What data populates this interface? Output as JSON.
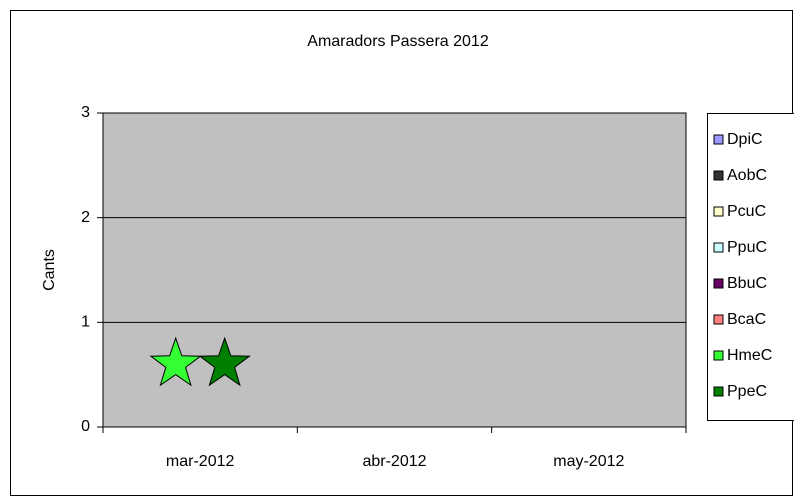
{
  "chart_data": {
    "type": "dot",
    "marker": "star",
    "title": "Amaradors Passera 2012",
    "y_label": "Cants",
    "categories": [
      "mar-2012",
      "abr-2012",
      "may-2012"
    ],
    "series": [
      {
        "name": "DpiC",
        "color": "#9999ff",
        "values": [
          null,
          null,
          null
        ]
      },
      {
        "name": "AobC",
        "color": "#333333",
        "values": [
          null,
          null,
          null
        ]
      },
      {
        "name": "PcuC",
        "color": "#ffffcc",
        "values": [
          null,
          null,
          null
        ]
      },
      {
        "name": "PpuC",
        "color": "#ccffff",
        "values": [
          null,
          null,
          null
        ]
      },
      {
        "name": "BbuC",
        "color": "#660066",
        "values": [
          null,
          null,
          null
        ]
      },
      {
        "name": "BcaC",
        "color": "#ff8080",
        "values": [
          null,
          null,
          null
        ]
      },
      {
        "name": "HmeC",
        "color": "#33ff33",
        "values": [
          0.6,
          null,
          null
        ]
      },
      {
        "name": "PpeC",
        "color": "#008000",
        "values": [
          0.6,
          null,
          null
        ]
      }
    ],
    "ylim": [
      0,
      3
    ],
    "yticks": [
      0,
      1,
      2,
      3
    ],
    "grid": true,
    "legend": "right",
    "plot_background": "#c0c0c0"
  }
}
